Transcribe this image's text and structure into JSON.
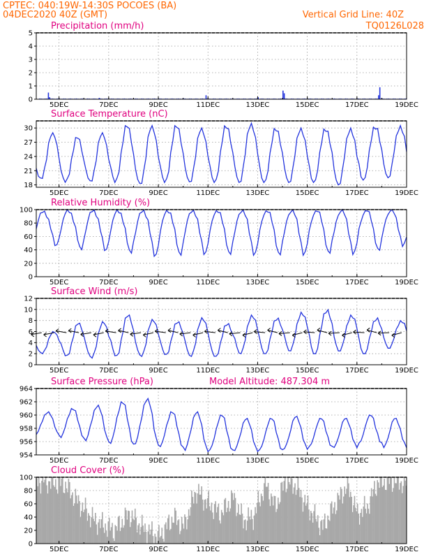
{
  "header": {
    "line1": "CPTEC:   040:19W-14:30S   POCOES (BA)",
    "line2": "04DEC2020 40Z (GMT)",
    "grid_note": "Vertical Grid Line: 40Z",
    "code": "TQ0126L028"
  },
  "colors": {
    "header": "#ff6600",
    "title": "#e0007f",
    "line": "#2233dd",
    "cloud": "#a8a8a8",
    "arrow": "#000000"
  },
  "x_axis": {
    "start_day": 4.083,
    "end_day": 19.0,
    "tick_days": [
      5,
      7,
      9,
      11,
      13,
      15,
      17,
      19
    ],
    "tick_labels": [
      "5DEC",
      "7DEC",
      "9DEC",
      "11DEC",
      "13DEC",
      "15DEC",
      "17DEC",
      "19DEC"
    ]
  },
  "chart_data": [
    {
      "type": "bar",
      "title": "Precipitation (mm/h)",
      "ylim": [
        0,
        5
      ],
      "yticks": [
        0,
        1,
        2,
        3,
        4,
        5
      ],
      "peaks": [
        {
          "day": 4.55,
          "value": 0.5
        },
        {
          "day": 4.6,
          "value": 0.15
        },
        {
          "day": 6.6,
          "value": 0.1
        },
        {
          "day": 10.9,
          "value": 0.3
        },
        {
          "day": 13.0,
          "value": 0.15
        },
        {
          "day": 14.0,
          "value": 0.65
        },
        {
          "day": 14.05,
          "value": 0.45
        },
        {
          "day": 17.9,
          "value": 0.9
        },
        {
          "day": 17.85,
          "value": 0.3
        }
      ]
    },
    {
      "type": "line",
      "title": "Surface Temperature (nC)",
      "ylim": [
        17.5,
        31.5
      ],
      "yticks": [
        18,
        21,
        24,
        27,
        30
      ],
      "daily_max": [
        29,
        28,
        29,
        30.5,
        30.5,
        30.5,
        30,
        30.5,
        31,
        30,
        30,
        30,
        30,
        30.5,
        30.5
      ],
      "daily_min": [
        19,
        18.5,
        18.5,
        18.5,
        18,
        18.5,
        18.5,
        18.5,
        18.5,
        18.5,
        18.5,
        18.5,
        18,
        19,
        19.5
      ]
    },
    {
      "type": "line",
      "title": "Relative Humidity (%)",
      "ylim": [
        0,
        100
      ],
      "yticks": [
        0,
        20,
        40,
        60,
        80,
        100
      ],
      "daily_max": [
        98,
        100,
        100,
        100,
        100,
        100,
        100,
        100,
        100,
        100,
        100,
        100,
        100,
        100,
        100
      ],
      "daily_min": [
        45,
        40,
        38,
        35,
        30,
        32,
        33,
        33,
        32,
        32,
        32,
        34,
        33,
        38,
        45
      ]
    },
    {
      "type": "line",
      "title": "Surface Wind (m/s)",
      "ylim": [
        0,
        12
      ],
      "yticks": [
        0,
        2,
        4,
        6,
        8,
        10,
        12
      ],
      "daily_max": [
        6,
        7.5,
        7.8,
        9,
        8.2,
        7.8,
        8.5,
        7.5,
        9,
        8.5,
        9.5,
        10,
        9,
        8.5,
        8
      ],
      "daily_min": [
        2,
        1.5,
        1.2,
        1.5,
        1.5,
        1.8,
        1.5,
        1.5,
        2,
        2,
        2.5,
        2,
        2.5,
        2,
        3
      ],
      "arrow_speed": 5.8
    },
    {
      "type": "line",
      "title": "Surface Pressure (hPa)",
      "note": "Model Altitude: 487.304 m",
      "ylim": [
        954,
        964
      ],
      "yticks": [
        954,
        956,
        958,
        960,
        962,
        964
      ],
      "daily_max": [
        960.5,
        961,
        961.5,
        962,
        962.5,
        960.5,
        960.5,
        960,
        959.5,
        959.5,
        959.8,
        959.5,
        959.5,
        960,
        959.5
      ],
      "daily_min": [
        957,
        956.5,
        956,
        955.5,
        955.5,
        955,
        954.5,
        954.5,
        954.5,
        954.5,
        954.8,
        955,
        955,
        955.5,
        955
      ]
    },
    {
      "type": "area",
      "title": "Cloud Cover (%)",
      "ylim": [
        0,
        100
      ],
      "yticks": [
        0,
        20,
        40,
        60,
        80,
        100
      ],
      "profile": [
        {
          "day": 4.1,
          "value": 95
        },
        {
          "day": 5.2,
          "value": 90
        },
        {
          "day": 5.8,
          "value": 60
        },
        {
          "day": 6.4,
          "value": 35
        },
        {
          "day": 7.2,
          "value": 20
        },
        {
          "day": 7.8,
          "value": 45
        },
        {
          "day": 8.3,
          "value": 25
        },
        {
          "day": 9.0,
          "value": 10
        },
        {
          "day": 9.6,
          "value": 40
        },
        {
          "day": 10.0,
          "value": 25
        },
        {
          "day": 10.5,
          "value": 80
        },
        {
          "day": 11.0,
          "value": 60
        },
        {
          "day": 11.5,
          "value": 45
        },
        {
          "day": 12.0,
          "value": 70
        },
        {
          "day": 12.4,
          "value": 35
        },
        {
          "day": 12.8,
          "value": 40
        },
        {
          "day": 13.3,
          "value": 90
        },
        {
          "day": 13.7,
          "value": 55
        },
        {
          "day": 14.1,
          "value": 95
        },
        {
          "day": 14.5,
          "value": 88
        },
        {
          "day": 15.0,
          "value": 55
        },
        {
          "day": 15.6,
          "value": 25
        },
        {
          "day": 16.2,
          "value": 65
        },
        {
          "day": 16.6,
          "value": 88
        },
        {
          "day": 17.0,
          "value": 45
        },
        {
          "day": 17.4,
          "value": 55
        },
        {
          "day": 17.8,
          "value": 92
        },
        {
          "day": 18.5,
          "value": 95
        },
        {
          "day": 19.0,
          "value": 90
        }
      ]
    }
  ]
}
